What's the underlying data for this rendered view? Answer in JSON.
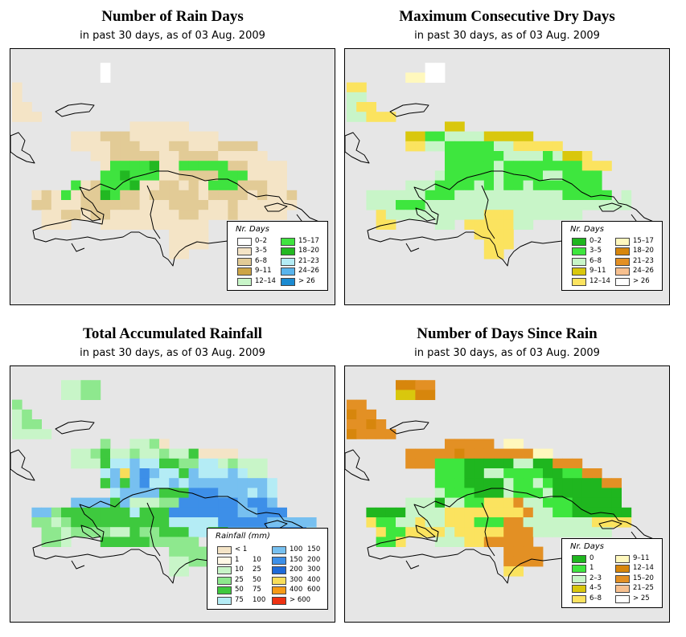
{
  "panels": [
    {
      "key": "rain_days",
      "title": "Number of Rain Days",
      "subtitle": "in past 30 days, as of  03 Aug. 2009",
      "legend_title": "Nr. Days",
      "legend_layout": "two-column",
      "legend": [
        {
          "label": "0–2",
          "color": "#ffffff"
        },
        {
          "label": "3–5",
          "color": "#f4e4c6"
        },
        {
          "label": "6–8",
          "color": "#e2cb96"
        },
        {
          "label": "9–11",
          "color": "#cda546"
        },
        {
          "label": "12–14",
          "color": "#c8f5c8"
        },
        {
          "label": "15–17",
          "color": "#3fe33f"
        },
        {
          "label": "18–20",
          "color": "#22b822"
        },
        {
          "label": "21–23",
          "color": "#b4ecf5"
        },
        {
          "label": "24–26",
          "color": "#59b4ec"
        },
        {
          "label": "> 26",
          "color": "#1a8ad1"
        }
      ]
    },
    {
      "key": "max_dry_days",
      "title": "Maximum Consecutive Dry Days",
      "subtitle": "in past 30 days, as of  03 Aug. 2009",
      "legend_title": "Nr. Days",
      "legend_layout": "two-column",
      "legend": [
        {
          "label": "0–2",
          "color": "#1fb61f"
        },
        {
          "label": "3–5",
          "color": "#3ee63e"
        },
        {
          "label": "6–8",
          "color": "#c8f5c8"
        },
        {
          "label": "9–11",
          "color": "#d9c70d"
        },
        {
          "label": "12–14",
          "color": "#fbe35f"
        },
        {
          "label": "15–17",
          "color": "#fff8bd"
        },
        {
          "label": "18–20",
          "color": "#d7860c"
        },
        {
          "label": "21–23",
          "color": "#e39024"
        },
        {
          "label": "24–26",
          "color": "#f7c08f"
        },
        {
          "label": "> 26",
          "color": "#ffffff"
        }
      ]
    },
    {
      "key": "rainfall",
      "title": "Total Accumulated Rainfall",
      "subtitle": "in past 30 days, as of  03 Aug. 2009",
      "legend_title": "Rainfall (mm)",
      "legend_layout": "range",
      "legend": [
        {
          "a": "< 1",
          "b": "",
          "color": "#f4e4c6"
        },
        {
          "a": "1",
          "b": "10",
          "color": "#fff8e6"
        },
        {
          "a": "10",
          "b": "25",
          "color": "#c8f5c8"
        },
        {
          "a": "25",
          "b": "50",
          "color": "#8ee88e"
        },
        {
          "a": "50",
          "b": "75",
          "color": "#3ec93e"
        },
        {
          "a": "75",
          "b": "100",
          "color": "#b4ecf5"
        },
        {
          "a": "100",
          "b": "150",
          "color": "#77c0f0"
        },
        {
          "a": "150",
          "b": "200",
          "color": "#3d8fe8"
        },
        {
          "a": "200",
          "b": "300",
          "color": "#1e6ad8"
        },
        {
          "a": "300",
          "b": "400",
          "color": "#f8dd5a"
        },
        {
          "a": "400",
          "b": "600",
          "color": "#f59a16"
        },
        {
          "a": "> 600",
          "b": "",
          "color": "#ee3212"
        }
      ]
    },
    {
      "key": "days_since_rain",
      "title": "Number of Days Since Rain",
      "subtitle": "in past 30 days, as of  03 Aug. 2009",
      "legend_title": "Nr. Days",
      "legend_layout": "two-column",
      "legend": [
        {
          "label": "0",
          "color": "#1fb61f"
        },
        {
          "label": "1",
          "color": "#3ee63e"
        },
        {
          "label": "2–3",
          "color": "#c8f5c8"
        },
        {
          "label": "4–5",
          "color": "#d9c70d"
        },
        {
          "label": "6–8",
          "color": "#fbe35f"
        },
        {
          "label": "9–11",
          "color": "#fff8bd"
        },
        {
          "label": "12–14",
          "color": "#d7860c"
        },
        {
          "label": "15–20",
          "color": "#e39024"
        },
        {
          "label": "21–25",
          "color": "#f7c08f"
        },
        {
          "label": "> 25",
          "color": "#ffffff"
        }
      ]
    }
  ],
  "grids": {
    "rain_days": [
      ".................................",
      ".........a.......................",
      ".........a.......................",
      "b................................",
      "b................................",
      "bb...............................",
      "bbb..............................",
      "............bbbbbb...............",
      "......bbbcccbbbbbbbbb............",
      "......bbbbcccbbbccbbbcccc........",
      "........bbcccccbbccccbbbbb.......",
      ".........bffffgbbfffffccbbbb.....",
      ".........ffgfffbbccccfffbbbb.....",
      "......fbcfffgbbccbcbfffcccbb.....",
      "..bcbfbccgfccbcccccbccccbcbbc....",
      "..ccbbbccccccbbbccccbbcbbbbbb....",
      "...bbccbccbbbbbbbccbbbcbbbbb.....",
      "...bbb...bbbbbbbbbbb.............",
      "................bbbb.............",
      "................bbbb.............",
      "................bb..............."
    ],
    "max_dry_days": [
      ".................................",
      "........jj.......................",
      "......ffjj.......................",
      "ee...............................",
      "cc...............................",
      "cee..............................",
      "cceee............................",
      "..........dd.....................",
      "......ddbbccccddddd..............",
      "......eeccbbbbbcceeeee...........",
      "..........bbbbbbccccbcdde........",
      "..........bbbbbcbbbbbbbbeee......",
      ".........cbbbbbcbbbbccbbbb.......",
      "......cccbbbbcbcbbcbbbbbbb.......",
      "..ccccccbbbcccccccccccbbbbb.c....",
      "..cccbbbccccccccccccccccccccc....",
      "...ecccccccccceeeccccccc.........",
      "...ee....cc.eeeeecc..............",
      ".............eeee................",
      "..............eee................",
      "..............ee................."
    ],
    "rainfall": [
      ".................................",
      ".....ccdd........................",
      ".....ccdd........................",
      "d................................",
      "cd...............................",
      "cdd..............................",
      "cccc.............................",
      ".........d..ccda.................",
      "......ccdeccdccdcceaaaa..........",
      "......ccceffgffeeddffcdccc.......",
      ".........fgjghgffegfffgfcc.......",
      ".........egeghffgfggggggggf......",
      "..........fggggeeehhhgggfgf......",
      "......ggggegcccddhhhhhhghhg......",
      "..ggdeeeeeeefeeehhhhhhhgghhh.....",
      "..ddcdeeeeeeeeeefffffhhhhhggggg..",
      "...ddcddddcceddeeeffeegggghhhhf..",
      "...ddc...eeeeeddddd..............",
      "................dddd.............",
      "................ccdd.............",
      "................cc..............."
    ],
    "days_since_rain": [
      ".................................",
      ".....gghh........................",
      ".....ddgg........................",
      "hh...............................",
      "ghh..............................",
      "hhgh.............................",
      "ghhhh............................",
      "..........hhhhh.ff...............",
      "......hhhhhghhhhhhhff............",
      "......hhhbbbaaaaaccaahhh.........",
      ".........bbbaaccbbbbaabbhh.......",
      ".........bbbaaaacbbcbaaaaahh.....",
      ".........cbbbaaacbbbcaaaaaaa.....",
      "......cccaccbbeeehccbbbaaaaa.....",
      "..aaaacccceeeeeeeehccbbaaaaaa....",
      "..ebbccecceeebbbhhccccccceeee....",
      "...ebbeeeeceeeeehhhcccccccc......",
      "...bbe...ccceehhhhh..............",
      "................hhhh.............",
      "................hhhh.............",
      "................ee..............."
    ]
  }
}
